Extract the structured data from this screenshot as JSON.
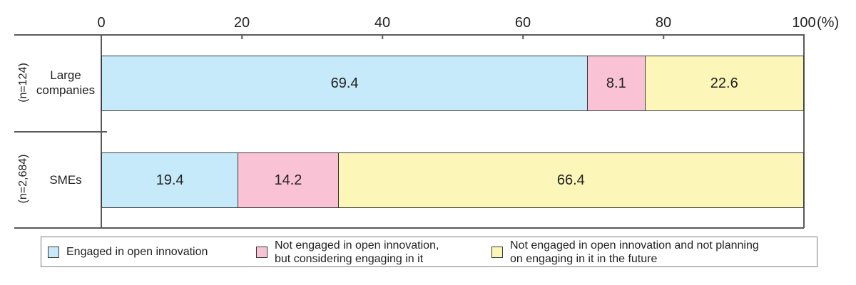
{
  "chart_data": {
    "type": "bar",
    "orientation": "horizontal",
    "stacked": true,
    "grid": false,
    "xlim": [
      0,
      100
    ],
    "unit_label": "(%)",
    "axis_ticks": [
      0,
      20,
      40,
      60,
      80,
      100
    ],
    "legend_position": "bottom",
    "categories": [
      {
        "label": "Large\ncompanies",
        "n_label": "(n=124)"
      },
      {
        "label": "SMEs",
        "n_label": "(n=2,684)"
      }
    ],
    "series": [
      {
        "name": "Engaged in open innovation",
        "color": "#c7eafa",
        "values": [
          69.4,
          19.4
        ]
      },
      {
        "name": "Not engaged in open innovation, but considering engaging in it",
        "color": "#f9c3d5",
        "values": [
          8.1,
          14.2
        ]
      },
      {
        "name": "Not engaged in open innovation and not planning on engaging in it in the future",
        "color": "#fcf7b9",
        "values": [
          22.6,
          66.4
        ]
      }
    ]
  },
  "legend": {
    "items": [
      {
        "label": "Engaged in open innovation",
        "color": "#c7eafa"
      },
      {
        "label": "Not engaged in open innovation,\nbut considering engaging in it",
        "color": "#f9c3d5"
      },
      {
        "label": "Not engaged in open innovation and not planning\non engaging in it in the future",
        "color": "#fcf7b9"
      }
    ]
  },
  "colors": {
    "blue": "#c7eafa",
    "pink": "#f9c3d5",
    "yellow": "#fcf7b9",
    "bar_border": "#3a3a3a",
    "axis_line": "#5a5a5a",
    "legend_border": "#7d7d7d",
    "text": "#222222"
  }
}
